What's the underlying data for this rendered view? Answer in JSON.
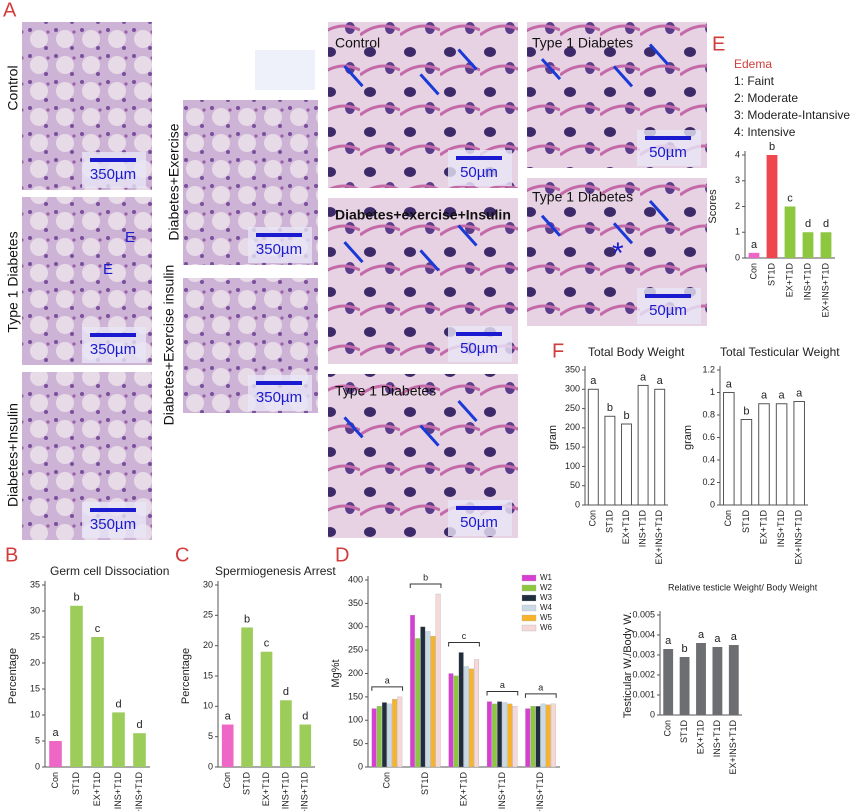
{
  "panels": {
    "letters": [
      "A",
      "B",
      "C",
      "D",
      "E",
      "F"
    ],
    "images": [
      {
        "label": "Control",
        "scale": "350µm"
      },
      {
        "label": "Type 1 Diabetes",
        "scale": "350µm",
        "marks": [
          "E",
          "E"
        ]
      },
      {
        "label": "Diabetes+Insulin",
        "scale": "350µm"
      },
      {
        "label": "Diabetes+Exercise",
        "scale": "350µm"
      },
      {
        "label": "Diabetes+Exercise insulin",
        "scale": "350µm"
      },
      {
        "label": "Control",
        "scale": "50µm"
      },
      {
        "label": "Diabetes+exercise+Insulin",
        "scale": "50µm"
      },
      {
        "label": "Type 1 Diabetes",
        "scale": "50µm"
      },
      {
        "label": "Type 1 Diabetes",
        "scale": "50µm"
      },
      {
        "label": "Type 1 Diabetes",
        "scale": "50µm",
        "marks": [
          "*"
        ]
      }
    ]
  },
  "chart_data": [
    {
      "type": "bar",
      "title": "Germ cell Dissociation",
      "ylabel": "Percentage",
      "categories": [
        "Con",
        "ST1D",
        "EX+T1D",
        "INS+T1D",
        "EX+INS+T1D"
      ],
      "values": [
        5,
        31,
        25,
        10.5,
        6.5
      ],
      "colors": [
        "#ee66c6",
        "#9ccc5a",
        "#9ccc5a",
        "#9ccc5a",
        "#9ccc5a"
      ],
      "bar_letters": [
        "a",
        "b",
        "c",
        "d",
        "d"
      ],
      "ylim": [
        0,
        35
      ],
      "yticks": [
        0,
        5,
        10,
        15,
        20,
        25,
        30,
        35
      ]
    },
    {
      "type": "bar",
      "title": "Spermiogenesis Arrest",
      "ylabel": "Percentage",
      "categories": [
        "Con",
        "ST1D",
        "EX+T1D",
        "INS+T1D",
        "EX+INS+T1D"
      ],
      "values": [
        7,
        23,
        19,
        11,
        7
      ],
      "colors": [
        "#ee66c6",
        "#9ccc5a",
        "#9ccc5a",
        "#9ccc5a",
        "#9ccc5a"
      ],
      "bar_letters": [
        "a",
        "b",
        "c",
        "d",
        "d"
      ],
      "ylim": [
        0,
        30
      ],
      "yticks": [
        0,
        5,
        10,
        15,
        20,
        25,
        30
      ]
    },
    {
      "type": "grouped",
      "ylabel": "Mg%t",
      "categories": [
        "Con",
        "ST1D",
        "EX+T1D",
        "INS+T1D",
        "EX+INS+T1D"
      ],
      "series": [
        {
          "name": "W1",
          "color": "#d63fd1",
          "values": [
            125,
            325,
            200,
            140,
            125
          ]
        },
        {
          "name": "W2",
          "color": "#8dc63f",
          "values": [
            130,
            275,
            195,
            135,
            130
          ]
        },
        {
          "name": "W3",
          "color": "#1f2d3d",
          "values": [
            138,
            300,
            245,
            140,
            130
          ]
        },
        {
          "name": "W4",
          "color": "#c9d9e6",
          "values": [
            135,
            290,
            215,
            138,
            135
          ]
        },
        {
          "name": "W5",
          "color": "#f7b32b",
          "values": [
            145,
            280,
            210,
            135,
            133
          ]
        },
        {
          "name": "W6",
          "color": "#f6d8d8",
          "values": [
            150,
            370,
            230,
            130,
            135
          ]
        }
      ],
      "group_letters": [
        "a",
        "b",
        "c",
        "a",
        "a"
      ],
      "ylim": [
        0,
        400
      ],
      "yticks": [
        0,
        50,
        100,
        150,
        200,
        250,
        300,
        350,
        400
      ]
    },
    {
      "type": "bar",
      "ylabel": "Scores",
      "legend_title": "Edema",
      "legend_items": [
        "1: Faint",
        "2: Moderate",
        "3: Moderate-Intansive",
        "4: Intensive"
      ],
      "categories": [
        "Con",
        "ST1D",
        "EX+T1D",
        "INS+T1D",
        "EX+INS+T1D"
      ],
      "values": [
        0.2,
        4,
        2,
        1,
        1
      ],
      "colors": [
        "#ee66c6",
        "#f0474f",
        "#8dc63f",
        "#8dc63f",
        "#8dc63f"
      ],
      "bar_letters": [
        "a",
        "b",
        "c",
        "d",
        "d"
      ],
      "ylim": [
        0,
        4
      ],
      "yticks": [
        0,
        1,
        2,
        3,
        4
      ]
    },
    {
      "type": "bar",
      "title": "Total Body Weight",
      "ylabel": "gram",
      "categories": [
        "Con",
        "ST1D",
        "EX+T1D",
        "INS+T1D",
        "EX+INS+T1D"
      ],
      "values": [
        300,
        230,
        210,
        310,
        300
      ],
      "colors": [
        "#ffffff",
        "#ffffff",
        "#ffffff",
        "#ffffff",
        "#ffffff"
      ],
      "bar_letters": [
        "a",
        "b",
        "b",
        "a",
        "a"
      ],
      "ylim": [
        0,
        350
      ],
      "yticks": [
        0,
        50,
        100,
        150,
        200,
        250,
        300,
        350
      ]
    },
    {
      "type": "bar",
      "title": "Total Testicular Weight",
      "ylabel": "gram",
      "categories": [
        "Con",
        "ST1D",
        "EX+T1D",
        "INS+T1D",
        "EX+INS+T1D"
      ],
      "values": [
        1.0,
        0.76,
        0.9,
        0.9,
        0.92
      ],
      "colors": [
        "#ffffff",
        "#ffffff",
        "#ffffff",
        "#ffffff",
        "#ffffff"
      ],
      "bar_letters": [
        "a",
        "b",
        "a",
        "a",
        "a"
      ],
      "ylim": [
        0,
        1.2
      ],
      "yticks": [
        0,
        0.2,
        0.4,
        0.6,
        0.8,
        1,
        1.2
      ]
    },
    {
      "type": "bar",
      "title": "Relative testicle Weight/ Body Weight",
      "ylabel": "Testicular W./Body W.",
      "categories": [
        "Con",
        "ST1D",
        "EX+T1D",
        "INS+T1D",
        "EX+INS+T1D"
      ],
      "values": [
        0.0033,
        0.0029,
        0.0036,
        0.0034,
        0.0035
      ],
      "colors": [
        "#6d6e71",
        "#6d6e71",
        "#6d6e71",
        "#6d6e71",
        "#6d6e71"
      ],
      "bar_letters": [
        "a",
        "b",
        "a",
        "a",
        "a"
      ],
      "ylim": [
        0,
        0.005
      ],
      "yticks": [
        0,
        0.001,
        0.002,
        0.003,
        0.004,
        0.005
      ]
    }
  ]
}
